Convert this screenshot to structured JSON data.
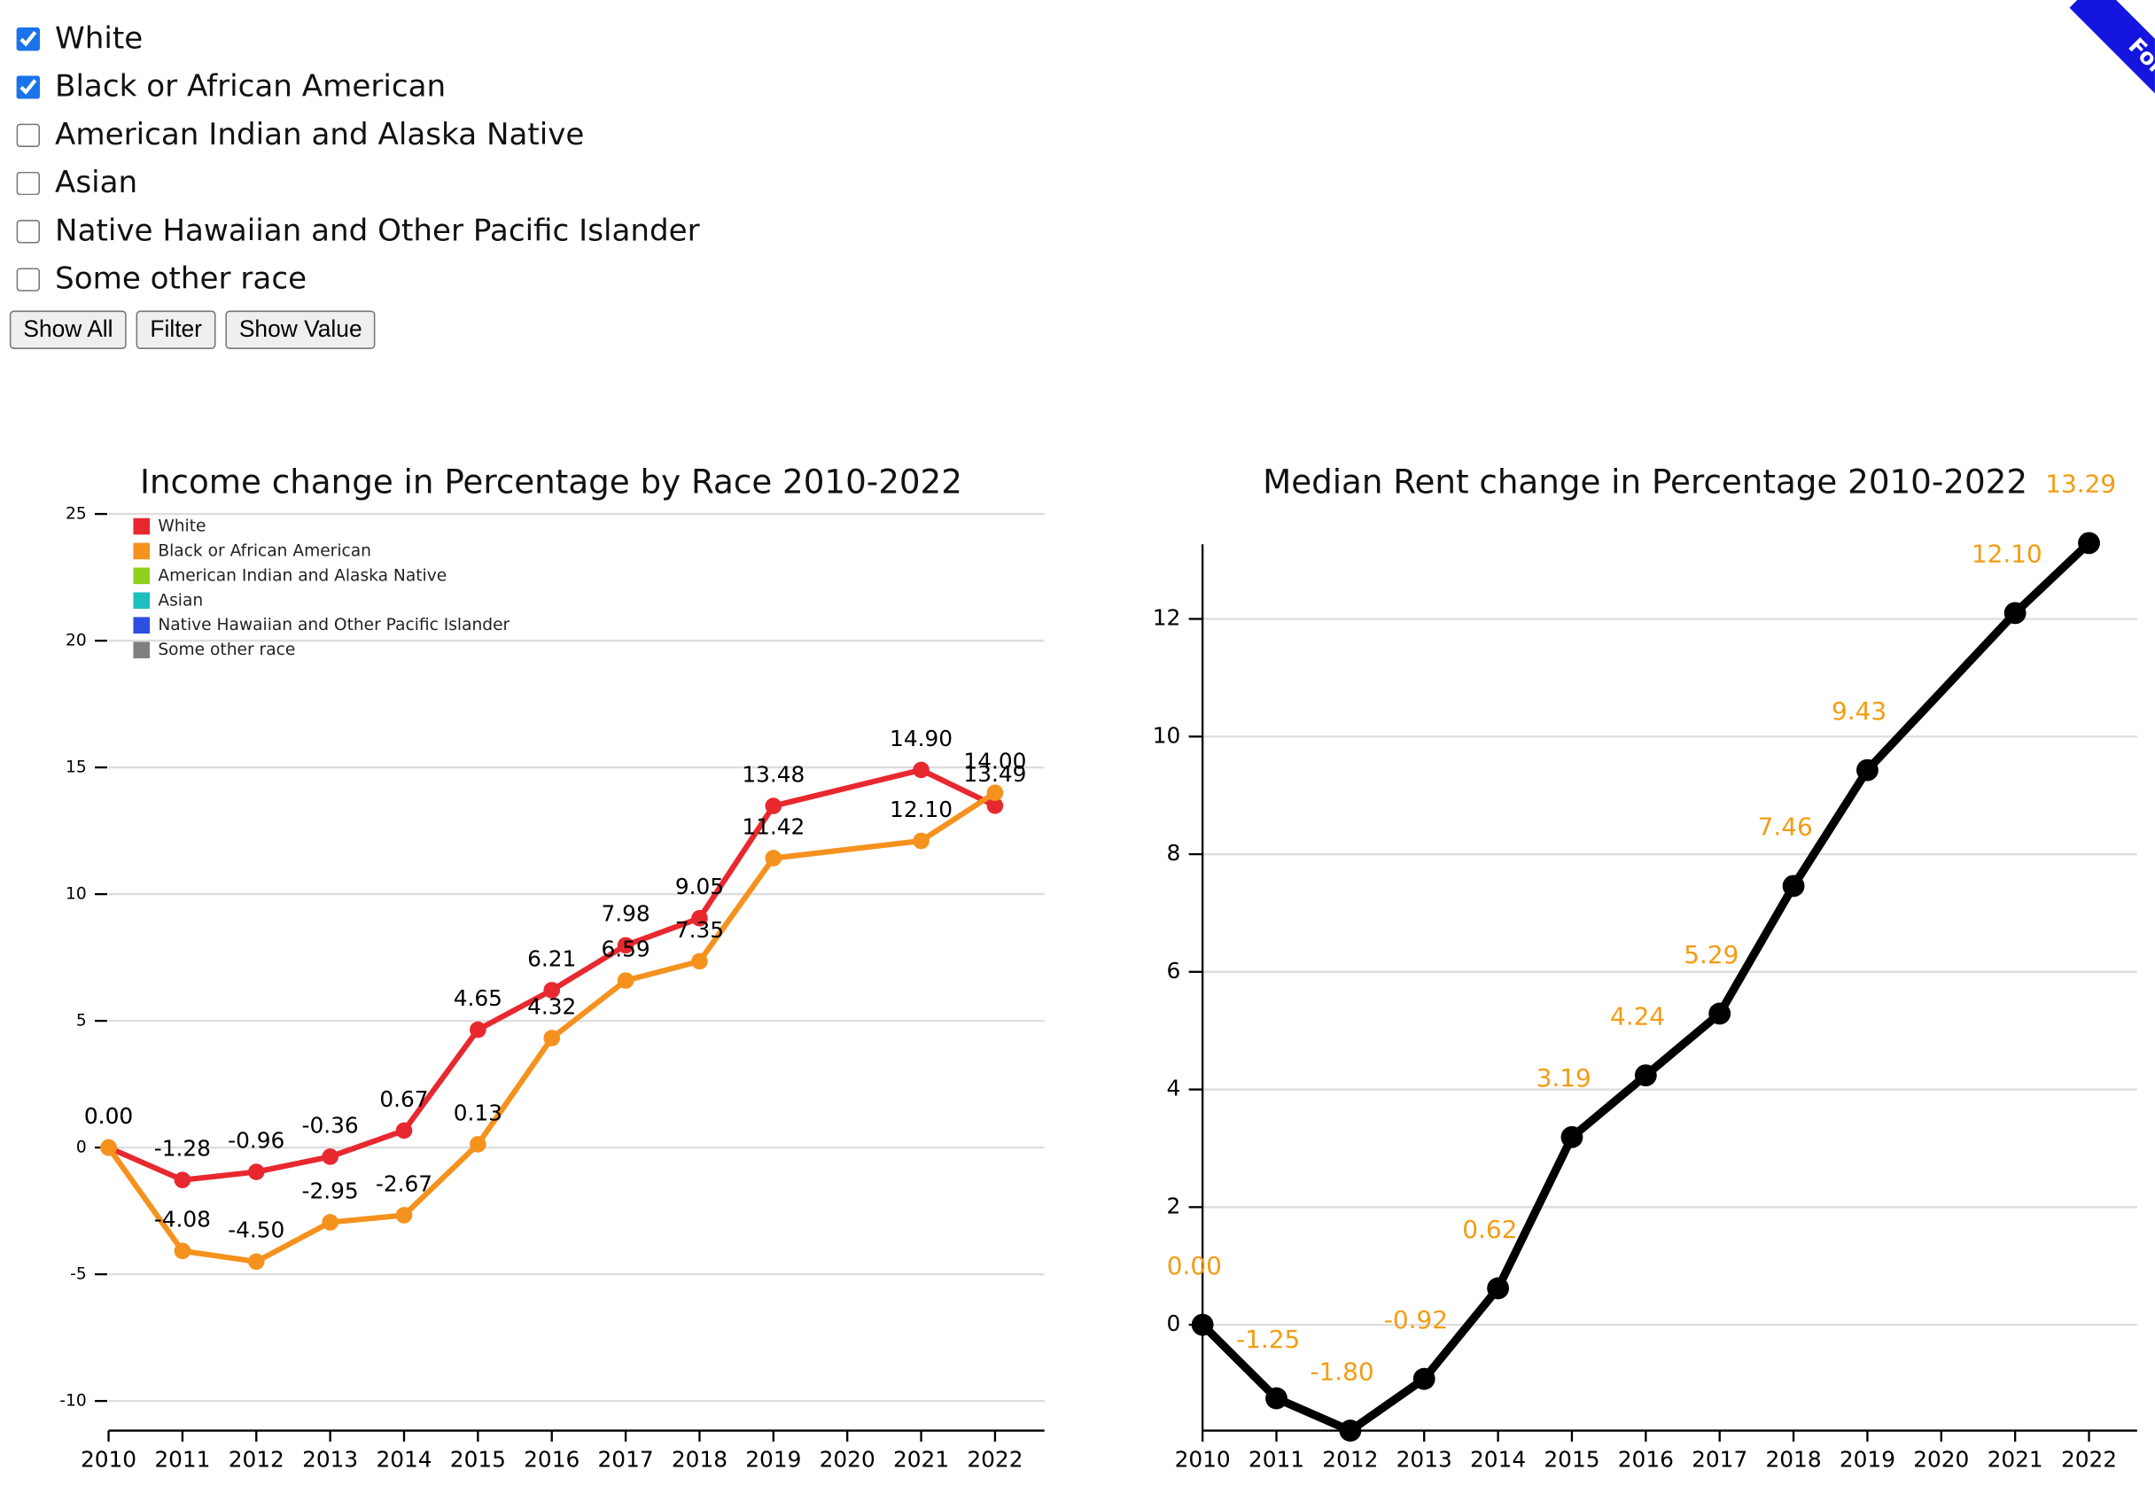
{
  "controls": {
    "checkboxes": [
      {
        "label": "White",
        "checked": true
      },
      {
        "label": "Black or African American",
        "checked": true
      },
      {
        "label": "American Indian and Alaska Native",
        "checked": false
      },
      {
        "label": "Asian",
        "checked": false
      },
      {
        "label": "Native Hawaiian and Other Pacific Islander",
        "checked": false
      },
      {
        "label": "Some other race",
        "checked": false
      }
    ],
    "buttons": [
      "Show All",
      "Filter",
      "Show Value"
    ],
    "ribbon": "Fork me"
  },
  "chart_data": [
    {
      "type": "line",
      "title": "Income change in Percentage by Race 2010-2022",
      "x": [
        2010,
        2011,
        2012,
        2013,
        2014,
        2015,
        2016,
        2017,
        2018,
        2019,
        2021,
        2022
      ],
      "xlim": [
        2010,
        2022
      ],
      "xticks": [
        2010,
        2011,
        2012,
        2013,
        2014,
        2015,
        2016,
        2017,
        2018,
        2019,
        2020,
        2021,
        2022
      ],
      "ylim": [
        -11.17,
        25
      ],
      "yticks": [
        25,
        20,
        15,
        10,
        5,
        0,
        -5,
        -10
      ],
      "grid": true,
      "legend": "upper left",
      "value_label_color": "#000000",
      "series": [
        {
          "name": "White",
          "color": "#e8282f",
          "values": [
            0,
            -1.28,
            -0.96,
            -0.36,
            0.67,
            4.65,
            6.21,
            7.98,
            9.05,
            13.48,
            14.9,
            13.49
          ],
          "value_labels": [
            "0.00",
            "-1.28",
            "-0.96",
            "-0.36",
            "0.67",
            "4.65",
            "6.21",
            "7.98",
            "9.05",
            "13.48",
            "14.90",
            "13.49"
          ]
        },
        {
          "name": "Black or African American",
          "color": "#f5921e",
          "values": [
            0,
            -4.08,
            -4.5,
            -2.95,
            -2.67,
            0.13,
            4.32,
            6.59,
            7.35,
            11.42,
            12.1,
            14
          ],
          "value_labels": [
            "0.00",
            "-4.08",
            "-4.50",
            "-2.95",
            "-2.67",
            "0.13",
            "4.32",
            "6.59",
            "7.35",
            "11.42",
            "12.10",
            "14.00"
          ]
        },
        {
          "name": "American Indian and Alaska Native",
          "color": "#8fd11c",
          "values": [
            null,
            null,
            null,
            null,
            null,
            null,
            null,
            null,
            null,
            null,
            null,
            null
          ]
        },
        {
          "name": "Asian",
          "color": "#1fbfbf",
          "values": [
            null,
            null,
            null,
            null,
            null,
            null,
            null,
            null,
            null,
            null,
            null,
            null
          ]
        },
        {
          "name": "Native Hawaiian and Other Pacific Islander",
          "color": "#2c4fe0",
          "values": [
            null,
            null,
            null,
            null,
            null,
            null,
            null,
            null,
            null,
            null,
            null,
            null
          ]
        },
        {
          "name": "Some other race",
          "color": "#808080",
          "values": [
            null,
            null,
            null,
            null,
            null,
            null,
            null,
            null,
            null,
            null,
            null,
            null
          ]
        }
      ]
    },
    {
      "type": "line",
      "title": "Median Rent change in Percentage 2010-2022",
      "x": [
        2010,
        2011,
        2012,
        2013,
        2014,
        2015,
        2016,
        2017,
        2018,
        2019,
        2021,
        2022
      ],
      "xlim": [
        2010,
        2022
      ],
      "xticks": [
        2010,
        2011,
        2012,
        2013,
        2014,
        2015,
        2016,
        2017,
        2018,
        2019,
        2020,
        2021,
        2022
      ],
      "ylim": [
        -1.8,
        13.27
      ],
      "yticks": [
        0,
        2,
        4,
        6,
        8,
        10,
        12
      ],
      "grid": true,
      "value_label_color": "#f39c12",
      "series": [
        {
          "color": "#000000",
          "values": [
            0,
            -1.25,
            -1.8,
            -0.92,
            0.62,
            3.19,
            4.24,
            5.29,
            7.46,
            9.43,
            12.1,
            13.29
          ],
          "value_labels": [
            "0.00",
            "-1.25",
            "-1.80",
            "-0.92",
            "0.62",
            "3.19",
            "4.24",
            "5.29",
            "7.46",
            "9.43",
            "12.10",
            "13.29"
          ]
        }
      ]
    }
  ]
}
